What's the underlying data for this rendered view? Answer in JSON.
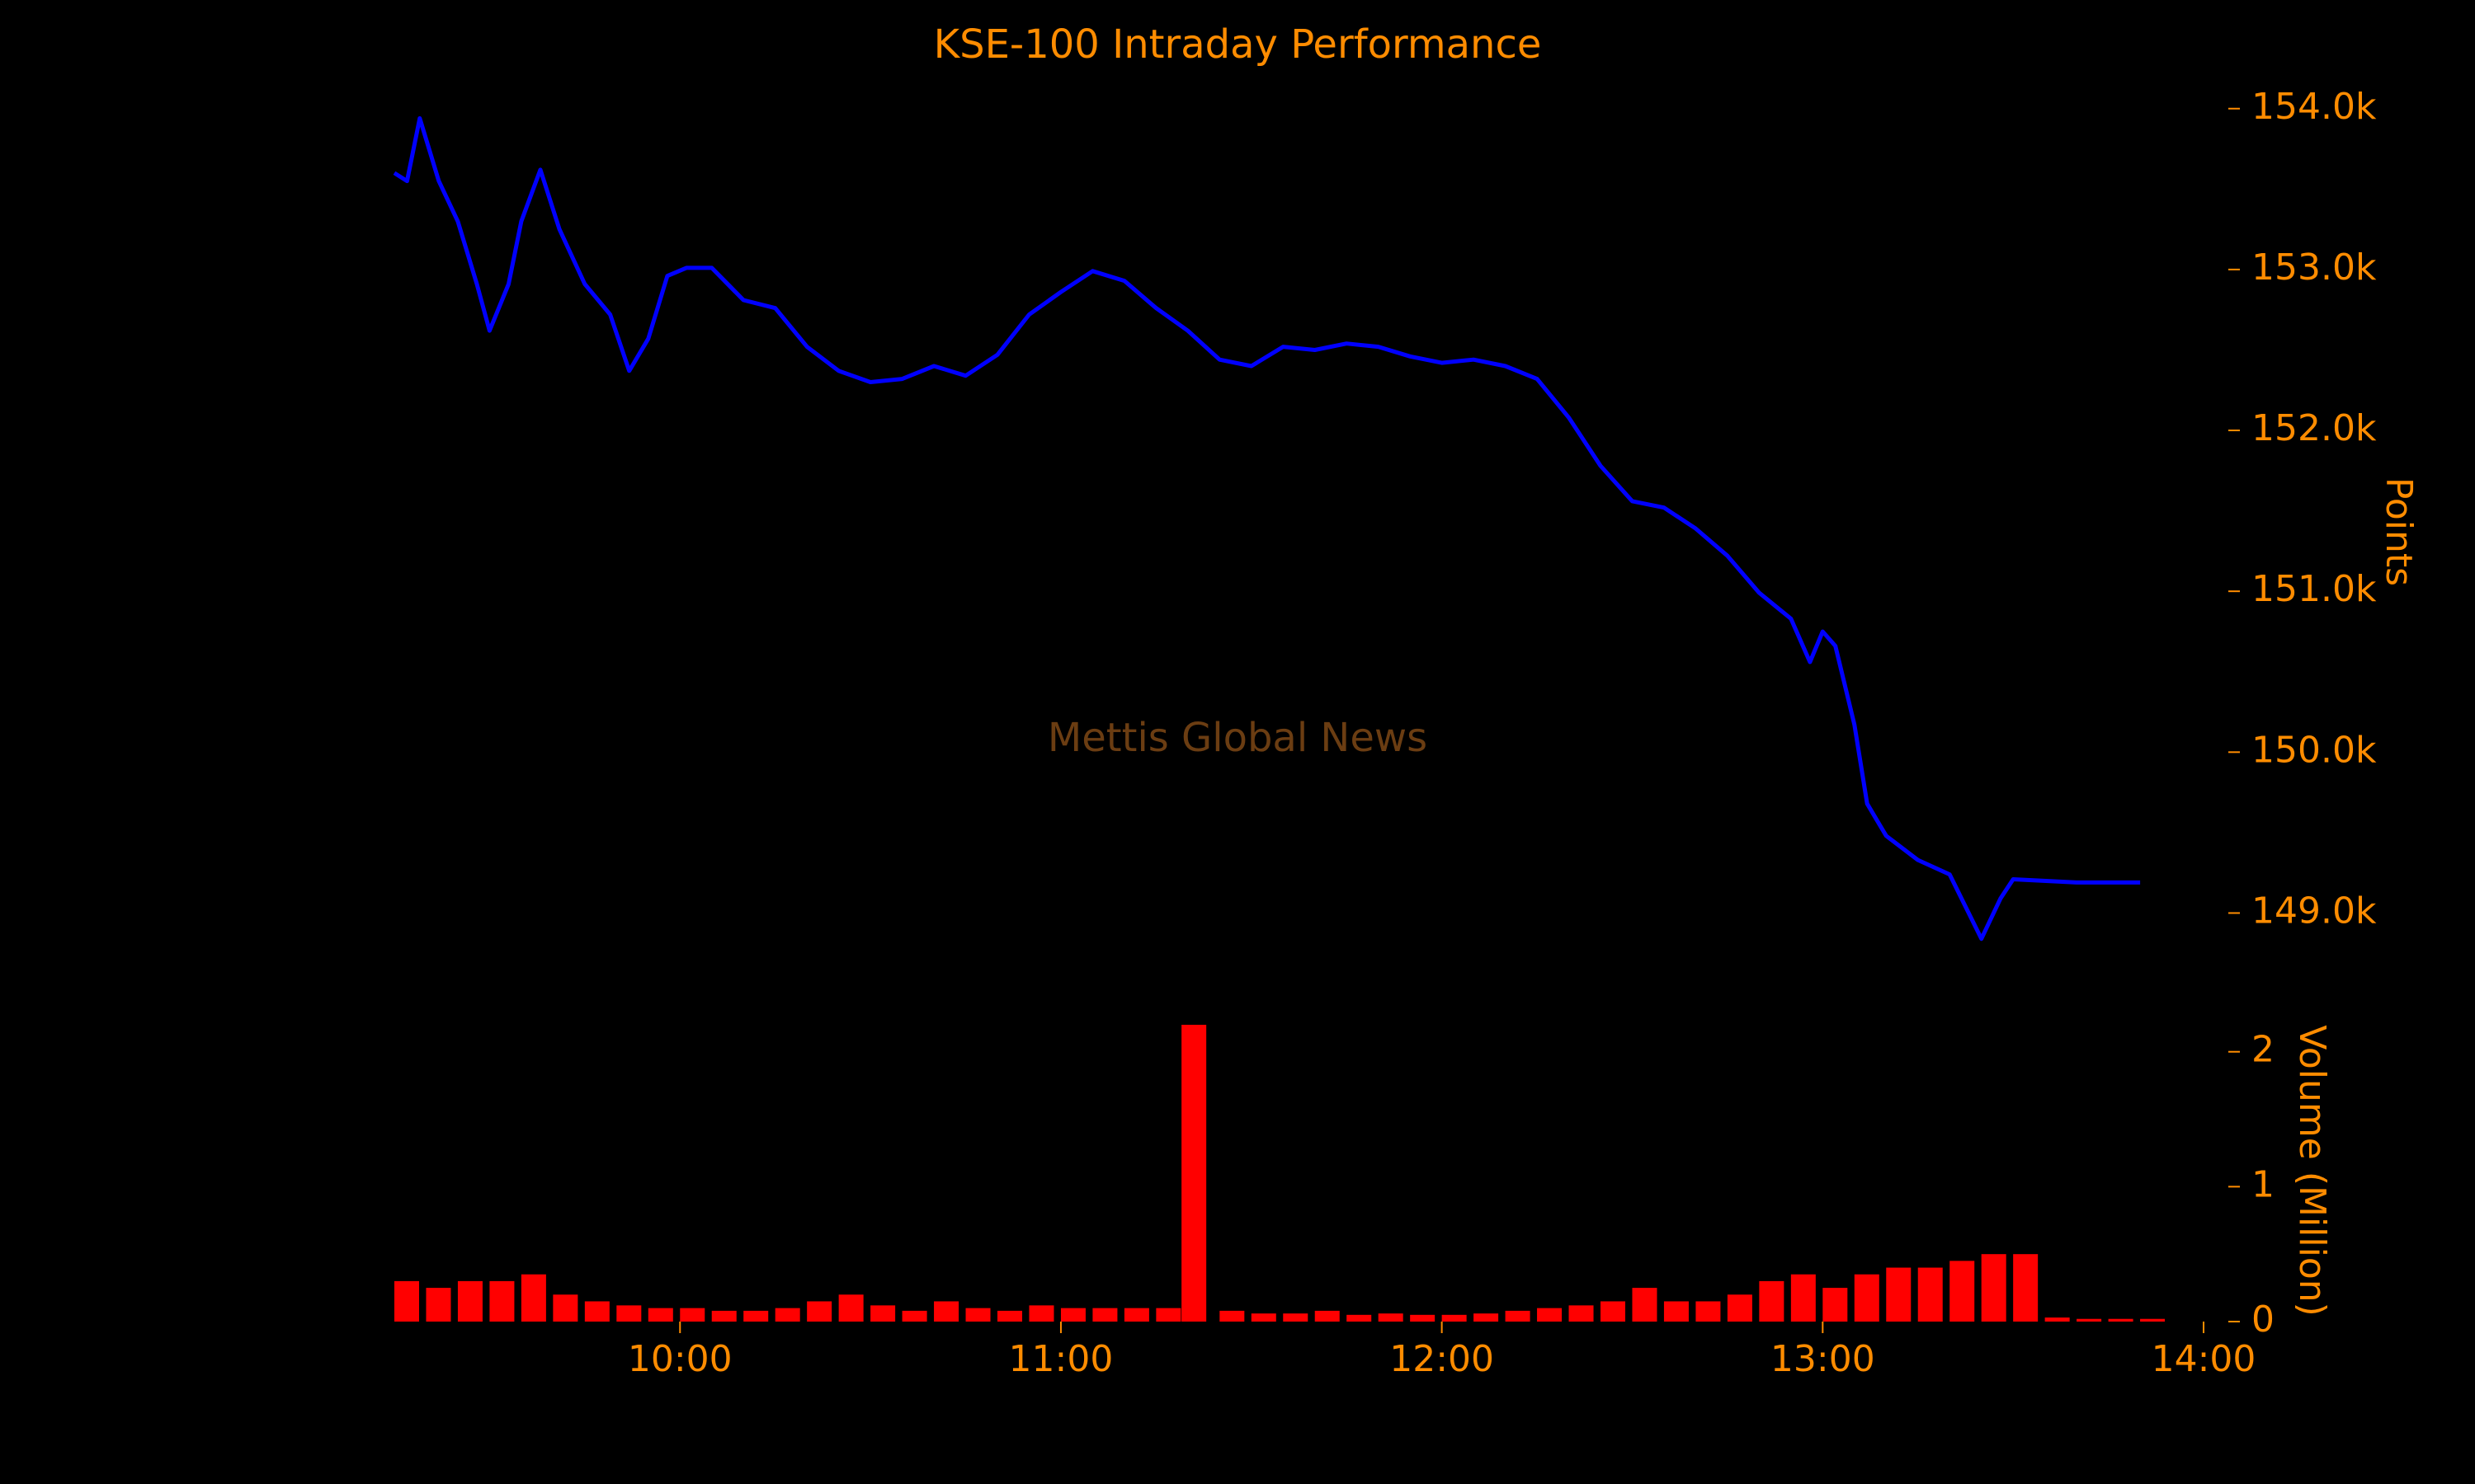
{
  "chart_data": [
    {
      "type": "line",
      "title": "KSE-100 Intraday Performance",
      "annotation": "Mettis Global News",
      "ylabel": "Points",
      "x": [
        "09:15",
        "09:17",
        "09:19",
        "09:22",
        "09:25",
        "09:28",
        "09:30",
        "09:33",
        "09:35",
        "09:38",
        "09:41",
        "09:45",
        "09:49",
        "09:52",
        "09:55",
        "09:58",
        "10:01",
        "10:05",
        "10:10",
        "10:15",
        "10:20",
        "10:25",
        "10:30",
        "10:35",
        "10:40",
        "10:45",
        "10:50",
        "10:55",
        "11:00",
        "11:05",
        "11:10",
        "11:15",
        "11:20",
        "11:25",
        "11:30",
        "11:35",
        "11:40",
        "11:45",
        "11:50",
        "11:55",
        "12:00",
        "12:05",
        "12:10",
        "12:15",
        "12:20",
        "12:25",
        "12:30",
        "12:35",
        "12:40",
        "12:45",
        "12:50",
        "12:55",
        "12:58",
        "13:00",
        "13:02",
        "13:05",
        "13:07",
        "13:10",
        "13:15",
        "13:20",
        "13:25",
        "13:28",
        "13:30",
        "13:40",
        "13:50"
      ],
      "series": [
        {
          "name": "KSE-100",
          "color": "#0000ff",
          "values": [
            153600,
            153550,
            153940,
            153550,
            153300,
            152910,
            152620,
            152910,
            153300,
            153620,
            153250,
            152910,
            152720,
            152370,
            152570,
            152960,
            153010,
            153010,
            152810,
            152760,
            152520,
            152370,
            152300,
            152320,
            152400,
            152340,
            152470,
            152720,
            152860,
            152990,
            152930,
            152760,
            152620,
            152440,
            152400,
            152520,
            152500,
            152540,
            152520,
            152460,
            152420,
            152440,
            152400,
            152320,
            152080,
            151780,
            151560,
            151520,
            151390,
            151220,
            150990,
            150830,
            150560,
            150750,
            150660,
            150170,
            149680,
            149480,
            149330,
            149240,
            148840,
            149090,
            149210,
            149190,
            149190
          ]
        }
      ],
      "xlim": [
        "09:15",
        "14:00"
      ],
      "ylim": [
        148700,
        154050
      ],
      "yticks": [
        {
          "value": 149000,
          "label": "149.0k"
        },
        {
          "value": 150000,
          "label": "150.0k"
        },
        {
          "value": 151000,
          "label": "151.0k"
        },
        {
          "value": 152000,
          "label": "152.0k"
        },
        {
          "value": 153000,
          "label": "153.0k"
        },
        {
          "value": 154000,
          "label": "154.0k"
        }
      ]
    },
    {
      "type": "bar",
      "ylabel": "Volume (Million)",
      "x": [
        "09:15",
        "09:20",
        "09:25",
        "09:30",
        "09:35",
        "09:40",
        "09:45",
        "09:50",
        "09:55",
        "10:00",
        "10:05",
        "10:10",
        "10:15",
        "10:20",
        "10:25",
        "10:30",
        "10:35",
        "10:40",
        "10:45",
        "10:50",
        "10:55",
        "11:00",
        "11:05",
        "11:10",
        "11:15",
        "11:19",
        "11:25",
        "11:30",
        "11:35",
        "11:40",
        "11:45",
        "11:50",
        "11:55",
        "12:00",
        "12:05",
        "12:10",
        "12:15",
        "12:20",
        "12:25",
        "12:30",
        "12:35",
        "12:40",
        "12:45",
        "12:50",
        "12:55",
        "13:00",
        "13:05",
        "13:10",
        "13:15",
        "13:20",
        "13:25",
        "13:30",
        "13:35",
        "13:40",
        "13:45",
        "13:50"
      ],
      "series": [
        {
          "name": "Volume",
          "color": "#ff0000",
          "values": [
            0.3,
            0.25,
            0.3,
            0.3,
            0.35,
            0.2,
            0.15,
            0.12,
            0.1,
            0.1,
            0.08,
            0.08,
            0.1,
            0.15,
            0.2,
            0.12,
            0.08,
            0.15,
            0.1,
            0.08,
            0.12,
            0.1,
            0.1,
            0.1,
            0.1,
            2.2,
            0.08,
            0.06,
            0.06,
            0.08,
            0.05,
            0.06,
            0.05,
            0.05,
            0.06,
            0.08,
            0.1,
            0.12,
            0.15,
            0.25,
            0.15,
            0.15,
            0.2,
            0.3,
            0.35,
            0.25,
            0.35,
            0.4,
            0.4,
            0.45,
            0.5,
            0.5,
            0.03,
            0.02,
            0.02,
            0.02
          ]
        }
      ],
      "xlim": [
        "09:15",
        "14:00"
      ],
      "xticks": [
        "10:00",
        "11:00",
        "12:00",
        "13:00",
        "14:00"
      ],
      "ylim": [
        0,
        2.2
      ],
      "yticks": [
        0,
        1,
        2
      ]
    }
  ]
}
